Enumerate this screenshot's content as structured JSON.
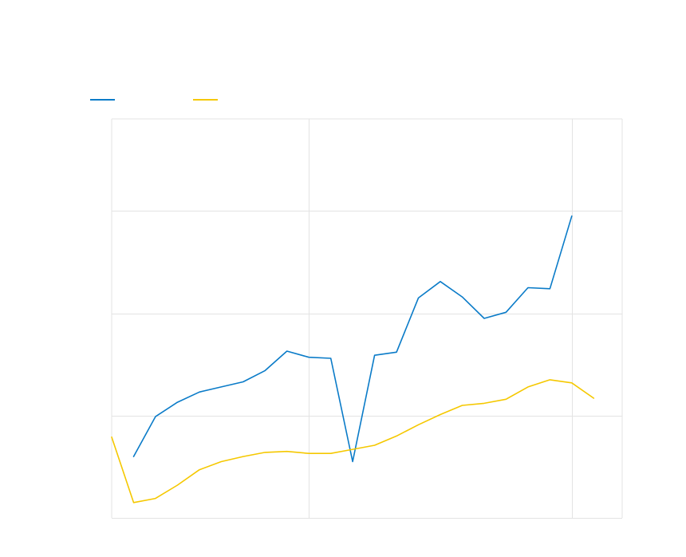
{
  "chart_data": {
    "type": "line",
    "x": [
      2000,
      2001,
      2002,
      2003,
      2004,
      2005,
      2006,
      2007,
      2008,
      2009,
      2010,
      2011,
      2012,
      2013,
      2014,
      2015,
      2016,
      2017,
      2018,
      2019,
      2020,
      2021,
      2022
    ],
    "series": [
      {
        "color": "#0a7bc8",
        "values": [
          null,
          4.0,
          7.9,
          9.3,
          10.3,
          10.8,
          11.3,
          12.4,
          14.3,
          13.7,
          13.6,
          3.5,
          13.9,
          14.2,
          19.5,
          21.1,
          19.6,
          17.5,
          18.1,
          20.5,
          20.4,
          27.5,
          null
        ]
      },
      {
        "color": "#f5c800",
        "values": [
          5.9,
          -0.5,
          -0.1,
          1.2,
          2.7,
          3.5,
          4.0,
          4.4,
          4.5,
          4.3,
          4.3,
          4.7,
          5.1,
          6.0,
          7.1,
          8.1,
          9.0,
          9.2,
          9.6,
          10.8,
          11.5,
          11.2,
          9.7
        ]
      }
    ],
    "xlim": [
      2000,
      2023.3
    ],
    "ylim": [
      -2,
      37
    ],
    "y_grid": [
      -2,
      8,
      18,
      28
    ],
    "x_grid": [
      2009,
      2021
    ],
    "grid": true,
    "legend_position": "top-left"
  }
}
